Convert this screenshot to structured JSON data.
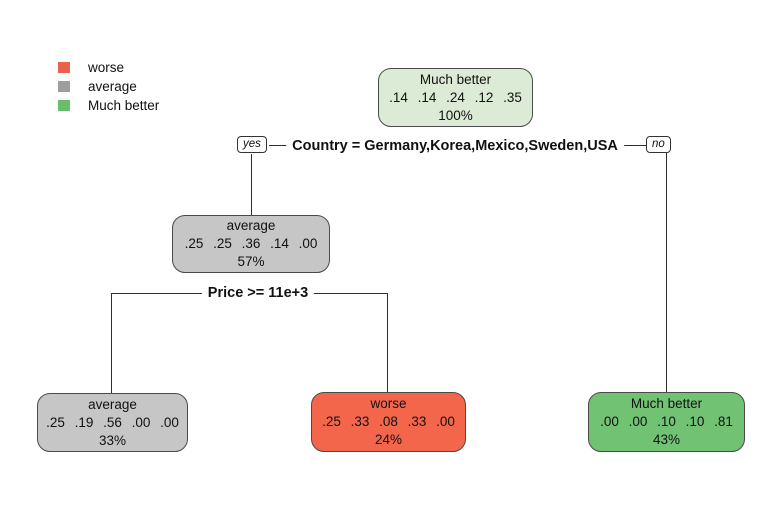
{
  "legend": {
    "items": [
      {
        "label": "worse",
        "color": "#e8624e"
      },
      {
        "label": "average",
        "color": "#9d9d9d"
      },
      {
        "label": "Much better",
        "color": "#6abd6a"
      }
    ]
  },
  "tree": {
    "root": {
      "label": "Much better",
      "probs": ".14 .14 .24 .12 .35",
      "percent": "100%",
      "fill": "#dcebd5"
    },
    "split1": {
      "condition": "Country = Germany,Korea,Mexico,Sweden,USA",
      "yes_label": "yes",
      "no_label": "no"
    },
    "node_average": {
      "label": "average",
      "probs": ".25 .25 .36 .14 .00",
      "percent": "57%",
      "fill": "#c6c6c6"
    },
    "split2": {
      "condition": "Price >= 11e+3"
    },
    "leaf_average": {
      "label": "average",
      "probs": ".25 .19 .56 .00 .00",
      "percent": "33%",
      "fill": "#c6c6c6"
    },
    "leaf_worse": {
      "label": "worse",
      "probs": ".25 .33 .08 .33 .00",
      "percent": "24%",
      "fill": "#f4664b"
    },
    "leaf_much_better": {
      "label": "Much better",
      "probs": ".00 .00 .10 .10 .81",
      "percent": "43%",
      "fill": "#72c274"
    }
  },
  "colors": {
    "background": "#ffffff",
    "branch_line": "#2e2e2e",
    "node_border": "#4a4a4a"
  }
}
